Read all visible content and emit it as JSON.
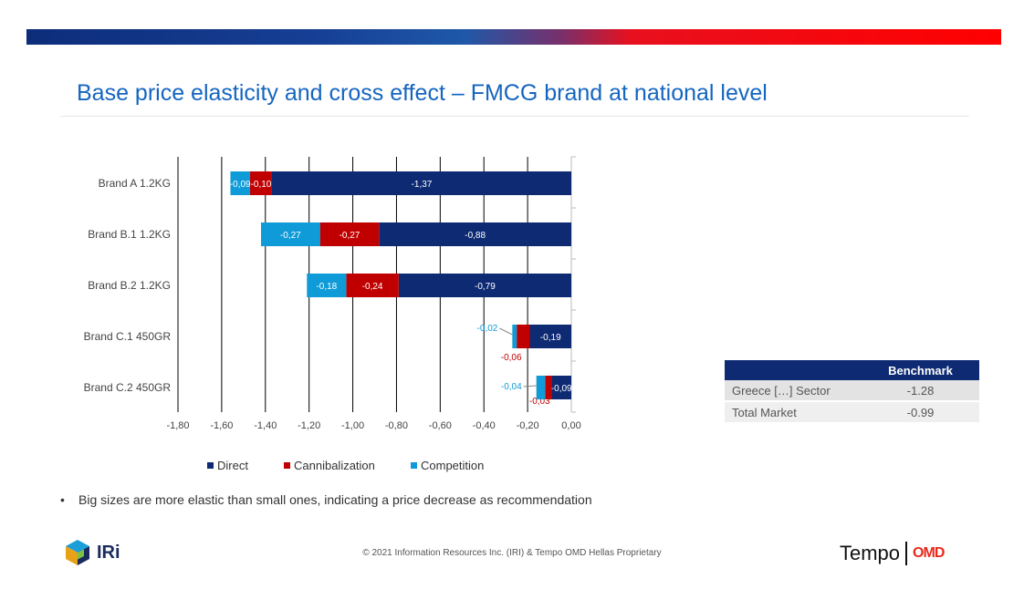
{
  "header": {
    "title": "Base price elasticity and cross effect – FMCG brand at national level"
  },
  "colors": {
    "direct": "#0d2a73",
    "cannibalization": "#c00000",
    "competition": "#0e9bd8",
    "title": "#1565c0"
  },
  "chart_data": {
    "type": "bar",
    "orientation": "horizontal",
    "stacked": true,
    "categories": [
      "Brand A   1.2KG",
      "Brand B.1   1.2KG",
      "Brand B.2   1.2KG",
      "Brand C.1   450GR",
      "Brand C.2   450GR"
    ],
    "series": [
      {
        "name": "Direct",
        "values": [
          -1.37,
          -0.88,
          -0.79,
          -0.19,
          -0.09
        ],
        "labels": [
          "-1,37",
          "-0,88",
          "-0,79",
          "-0,19",
          "-0,09"
        ]
      },
      {
        "name": "Cannibalization",
        "values": [
          -0.1,
          -0.27,
          -0.24,
          -0.06,
          -0.03
        ],
        "labels": [
          "-0,10",
          "-0,27",
          "-0,24",
          "-0,06",
          "-0,03"
        ]
      },
      {
        "name": "Competition",
        "values": [
          -0.09,
          -0.27,
          -0.18,
          -0.02,
          -0.04
        ],
        "labels": [
          "-0,09",
          "-0,27",
          "-0,18",
          "-0,02",
          "-0,04"
        ]
      }
    ],
    "xlim": [
      -1.8,
      0.0
    ],
    "xticks": [
      -1.8,
      -1.6,
      -1.4,
      -1.2,
      -1.0,
      -0.8,
      -0.6,
      -0.4,
      -0.2,
      0.0
    ],
    "xtick_labels": [
      "-1,80",
      "-1,60",
      "-1,40",
      "-1,20",
      "-1,00",
      "-0,80",
      "-0,60",
      "-0,40",
      "-0,20",
      "0,00"
    ],
    "grid": "vertical",
    "legend_position": "bottom"
  },
  "benchmark": {
    "header": "Benchmark",
    "rows": [
      {
        "label": "Greece […] Sector",
        "value": "-1.28"
      },
      {
        "label": "Total Market",
        "value": "-0.99"
      }
    ]
  },
  "bullet": "Big sizes are more elastic than small ones, indicating a price decrease as recommendation",
  "footer": {
    "copyright": "© 2021 Information Resources Inc. (IRI) & Tempo OMD Hellas Proprietary",
    "logo_left": "IRi",
    "logo_right": "Tempo",
    "logo_right_mark": "OMD"
  }
}
